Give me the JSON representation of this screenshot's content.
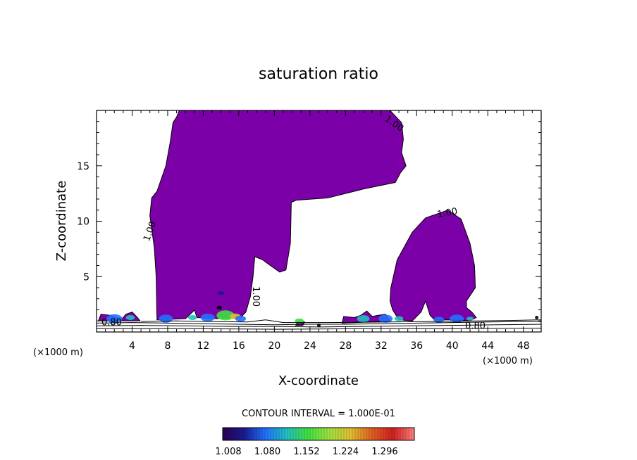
{
  "chart_data": {
    "type": "heatmap",
    "title": "saturation ratio",
    "xlabel": "X-coordinate",
    "ylabel": "Z-coordinate",
    "x_unit": "(×1000 m)",
    "x_unit_right": "(×1000 m)",
    "xlim": [
      0,
      50
    ],
    "ylim": [
      0,
      20
    ],
    "x_ticks": [
      4,
      8,
      12,
      16,
      20,
      24,
      28,
      32,
      36,
      40,
      44,
      48
    ],
    "y_ticks": [
      5,
      10,
      15
    ],
    "contour_interval_text": "CONTOUR INTERVAL = 1.000E-01",
    "colorbar": {
      "labels": [
        "1.008",
        "1.080",
        "1.152",
        "1.224",
        "1.296"
      ],
      "colors": [
        "#2a0050",
        "#1a1a90",
        "#2070ff",
        "#20c0c0",
        "#40e040",
        "#a0e040",
        "#e0c030",
        "#e06020",
        "#d02020",
        "#ff8080"
      ]
    },
    "fill_color": "#7b00a8",
    "contour_labels": [
      {
        "text": "1.00",
        "x": 33.3,
        "y": 18.6,
        "angle": 35
      },
      {
        "text": "1.00",
        "x": 39.5,
        "y": 10.5,
        "angle": -10
      },
      {
        "text": "1.00",
        "x": 6.3,
        "y": 9.0,
        "angle": -70
      },
      {
        "text": "1.00",
        "x": 17.6,
        "y": 3.2,
        "angle": 90
      },
      {
        "text": "0.80",
        "x": 1.7,
        "y": 0.6,
        "angle": 0
      },
      {
        "text": "0.80",
        "x": 42.6,
        "y": 0.3,
        "angle": 0
      }
    ],
    "regions": [
      {
        "name": "left-tower",
        "points": [
          [
            6.8,
            1.1
          ],
          [
            6.7,
            5
          ],
          [
            6.5,
            7.6
          ],
          [
            6.0,
            10.5
          ],
          [
            6.2,
            12.1
          ],
          [
            6.8,
            12.7
          ],
          [
            7.8,
            15
          ],
          [
            8.3,
            17.2
          ],
          [
            8.6,
            18.9
          ],
          [
            9.0,
            19.4
          ],
          [
            9.3,
            20
          ],
          [
            33.0,
            20
          ],
          [
            34.3,
            18.9
          ],
          [
            34.5,
            17.4
          ],
          [
            34.3,
            16.2
          ],
          [
            34.8,
            15
          ],
          [
            34.2,
            14.4
          ],
          [
            33.6,
            13.5
          ],
          [
            30,
            12.9
          ],
          [
            26,
            12.1
          ],
          [
            22.5,
            11.9
          ],
          [
            21.9,
            11.7
          ],
          [
            21.8,
            8
          ],
          [
            21.3,
            5.6
          ],
          [
            20.6,
            5.4
          ],
          [
            19.2,
            6.2
          ],
          [
            18.7,
            6.5
          ],
          [
            17.8,
            6.8
          ],
          [
            17.6,
            5
          ],
          [
            17.3,
            3.2
          ],
          [
            16.8,
            1.8
          ],
          [
            16.2,
            1.3
          ],
          [
            13.5,
            1.2
          ],
          [
            11.3,
            1.3
          ],
          [
            11.0,
            2.0
          ],
          [
            10.8,
            1.8
          ],
          [
            10.0,
            1.2
          ],
          [
            6.8,
            1.1
          ]
        ]
      },
      {
        "name": "right-tower",
        "points": [
          [
            34.0,
            1.1
          ],
          [
            33.3,
            2.0
          ],
          [
            33.0,
            2.8
          ],
          [
            33.1,
            4.0
          ],
          [
            33.8,
            6.5
          ],
          [
            35.5,
            9.0
          ],
          [
            37.0,
            10.3
          ],
          [
            39.5,
            11.0
          ],
          [
            41.0,
            10.2
          ],
          [
            42.0,
            8.0
          ],
          [
            42.5,
            6.0
          ],
          [
            42.6,
            4.0
          ],
          [
            41.6,
            2.8
          ],
          [
            41.6,
            2.2
          ],
          [
            42.2,
            1.8
          ],
          [
            42.7,
            1.3
          ],
          [
            42.0,
            1.0
          ],
          [
            40,
            1.1
          ],
          [
            38.0,
            1.1
          ],
          [
            37.5,
            1.5
          ],
          [
            37.0,
            2.8
          ],
          [
            36.5,
            1.8
          ],
          [
            35.5,
            1.0
          ],
          [
            34.0,
            1.1
          ]
        ]
      },
      {
        "name": "small-patch-left",
        "points": [
          [
            0.2,
            1.0
          ],
          [
            0.5,
            1.6
          ],
          [
            1.6,
            1.5
          ],
          [
            2.2,
            1.3
          ],
          [
            2.8,
            1.1
          ],
          [
            3.3,
            1.6
          ],
          [
            4.0,
            1.8
          ],
          [
            4.6,
            1.3
          ],
          [
            4.9,
            1.0
          ],
          [
            0.2,
            1.0
          ]
        ]
      },
      {
        "name": "small-patch-mid1",
        "points": [
          [
            27.6,
            0.8
          ],
          [
            27.8,
            1.4
          ],
          [
            29.0,
            1.3
          ],
          [
            29.7,
            1.5
          ],
          [
            30.4,
            1.9
          ],
          [
            31.0,
            1.4
          ],
          [
            31.6,
            1.5
          ],
          [
            32.5,
            1.6
          ],
          [
            33.0,
            1.0
          ],
          [
            27.6,
            0.8
          ]
        ]
      },
      {
        "name": "small-patch-mid2",
        "points": [
          [
            22.4,
            0.6
          ],
          [
            22.6,
            0.9
          ],
          [
            23.4,
            0.9
          ],
          [
            23.2,
            0.6
          ],
          [
            22.4,
            0.6
          ]
        ]
      }
    ],
    "hotspots": [
      {
        "x": 2.0,
        "y": 1.2,
        "r": 0.9,
        "color": "#2070ff"
      },
      {
        "x": 3.8,
        "y": 1.3,
        "r": 0.5,
        "color": "#20c0c0"
      },
      {
        "x": 7.8,
        "y": 1.2,
        "r": 0.8,
        "color": "#2070ff"
      },
      {
        "x": 10.8,
        "y": 1.3,
        "r": 0.5,
        "color": "#20c0c0"
      },
      {
        "x": 12.5,
        "y": 1.3,
        "r": 0.8,
        "color": "#2070ff"
      },
      {
        "x": 14.5,
        "y": 1.5,
        "r": 1.0,
        "color": "#40e040"
      },
      {
        "x": 15.6,
        "y": 1.4,
        "r": 0.6,
        "color": "#e0c030"
      },
      {
        "x": 16.2,
        "y": 1.2,
        "r": 0.6,
        "color": "#2070ff"
      },
      {
        "x": 14.0,
        "y": 3.5,
        "r": 0.4,
        "color": "#1a1a90"
      },
      {
        "x": 13.8,
        "y": 2.2,
        "r": 0.3,
        "color": "#000000"
      },
      {
        "x": 22.8,
        "y": 1.0,
        "r": 0.5,
        "color": "#40e040"
      },
      {
        "x": 25.0,
        "y": 0.6,
        "r": 0.2,
        "color": "#000000"
      },
      {
        "x": 30.0,
        "y": 1.2,
        "r": 0.7,
        "color": "#20c0c0"
      },
      {
        "x": 32.5,
        "y": 1.2,
        "r": 0.8,
        "color": "#2070ff"
      },
      {
        "x": 34.0,
        "y": 1.2,
        "r": 0.5,
        "color": "#20c0c0"
      },
      {
        "x": 38.5,
        "y": 1.1,
        "r": 0.6,
        "color": "#2070ff"
      },
      {
        "x": 40.5,
        "y": 1.2,
        "r": 0.8,
        "color": "#2070ff"
      },
      {
        "x": 42.0,
        "y": 1.2,
        "r": 0.4,
        "color": "#20c0c0"
      },
      {
        "x": 49.5,
        "y": 1.3,
        "r": 0.2,
        "color": "#000000"
      }
    ],
    "ground_contours": [
      [
        [
          0,
          0.55
        ],
        [
          5,
          0.6
        ],
        [
          10,
          0.55
        ],
        [
          15,
          0.5
        ],
        [
          20,
          0.5
        ],
        [
          25,
          0.45
        ],
        [
          30,
          0.5
        ],
        [
          35,
          0.55
        ],
        [
          40,
          0.6
        ],
        [
          45,
          0.65
        ],
        [
          50,
          0.7
        ]
      ],
      [
        [
          0,
          0.8
        ],
        [
          4,
          0.85
        ],
        [
          8,
          0.8
        ],
        [
          12,
          0.75
        ],
        [
          16,
          0.7
        ],
        [
          20,
          0.65
        ],
        [
          24,
          0.7
        ],
        [
          28,
          0.7
        ],
        [
          32,
          0.75
        ],
        [
          36,
          0.8
        ],
        [
          40,
          0.85
        ],
        [
          44,
          0.9
        ],
        [
          50,
          0.95
        ]
      ],
      [
        [
          0,
          0.3
        ],
        [
          10,
          0.3
        ],
        [
          20,
          0.25
        ],
        [
          30,
          0.3
        ],
        [
          40,
          0.3
        ],
        [
          50,
          0.35
        ]
      ],
      [
        [
          5,
          0.95
        ],
        [
          9,
          1.0
        ],
        [
          12,
          0.95
        ],
        [
          17,
          0.9
        ],
        [
          19,
          1.1
        ],
        [
          21,
          0.85
        ],
        [
          26,
          0.85
        ],
        [
          33,
          0.9
        ],
        [
          38,
          0.95
        ],
        [
          43,
          1.0
        ],
        [
          47,
          1.05
        ],
        [
          50,
          1.1
        ]
      ]
    ]
  }
}
